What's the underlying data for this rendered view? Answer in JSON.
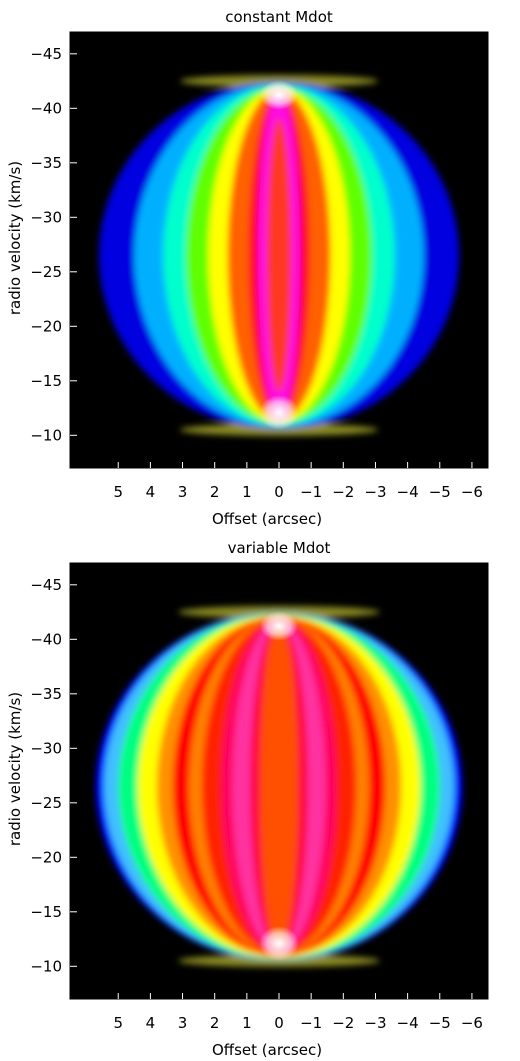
{
  "chart_data": [
    {
      "type": "heatmap",
      "title": "constant Mdot",
      "xlabel": "Offset (arcsec)",
      "ylabel": "radio velocity (km/s)",
      "xlim": [
        6.5,
        -6.5
      ],
      "ylim": [
        -7,
        -47
      ],
      "x_ticks": [
        5,
        4,
        3,
        2,
        1,
        0,
        -1,
        -2,
        -3,
        -4,
        -5,
        -6
      ],
      "x_tick_labels": [
        "5",
        "4",
        "3",
        "2",
        "1",
        "0",
        "−1",
        "−2",
        "−3",
        "−4",
        "−5",
        "−6"
      ],
      "y_ticks": [
        -45,
        -40,
        -35,
        -30,
        -25,
        -20,
        -15,
        -10
      ],
      "y_tick_labels": [
        "−45",
        "−40",
        "−35",
        "−30",
        "−25",
        "−20",
        "−15",
        "−10"
      ],
      "colormap": [
        "#000000",
        "#0000ff",
        "#00ffff",
        "#00ff00",
        "#ffff00",
        "#ff0000",
        "#ff00ff",
        "#ffffff"
      ],
      "background": "#000000",
      "shell_center": {
        "x": 0,
        "v": -26.5
      },
      "velocity_extent": [
        -42.5,
        -10.5
      ],
      "max_offset": 5.6,
      "bands": [
        {
          "offset": 5.6,
          "color": "#0000e0"
        },
        {
          "offset": 4.5,
          "color": "#00b0ff"
        },
        {
          "offset": 3.6,
          "color": "#00ffcc"
        },
        {
          "offset": 2.9,
          "color": "#60ff00"
        },
        {
          "offset": 2.2,
          "color": "#ffff00"
        },
        {
          "offset": 1.6,
          "color": "#ff6000"
        },
        {
          "offset": 0.95,
          "color": "#ff0020"
        },
        {
          "offset": 0.65,
          "color": "#ff10e0"
        }
      ],
      "inner_core_color": "#ff4000",
      "cap_color": "#ffffff",
      "rim_color": "#ffff40"
    },
    {
      "type": "heatmap",
      "title": "variable Mdot",
      "xlabel": "Offset (arcsec)",
      "ylabel": "radio velocity (km/s)",
      "xlim": [
        6.5,
        -6.5
      ],
      "ylim": [
        -7,
        -47
      ],
      "x_ticks": [
        5,
        4,
        3,
        2,
        1,
        0,
        -1,
        -2,
        -3,
        -4,
        -5,
        -6
      ],
      "x_tick_labels": [
        "5",
        "4",
        "3",
        "2",
        "1",
        "0",
        "−1",
        "−2",
        "−3",
        "−4",
        "−5",
        "−6"
      ],
      "y_ticks": [
        -45,
        -40,
        -35,
        -30,
        -25,
        -20,
        -15,
        -10
      ],
      "y_tick_labels": [
        "−45",
        "−40",
        "−35",
        "−30",
        "−25",
        "−20",
        "−15",
        "−10"
      ],
      "colormap": [
        "#000000",
        "#0000ff",
        "#00ffff",
        "#00ff00",
        "#ffff00",
        "#ff0000",
        "#ff00ff",
        "#ffffff"
      ],
      "background": "#000000",
      "shell_center": {
        "x": 0,
        "v": -26.5
      },
      "velocity_extent": [
        -42.5,
        -10.5
      ],
      "max_offset": 5.7,
      "bands": [
        {
          "offset": 5.7,
          "color": "#0000ff"
        },
        {
          "offset": 5.45,
          "color": "#40c0ff"
        },
        {
          "offset": 5.0,
          "color": "#00ff80"
        },
        {
          "offset": 4.4,
          "color": "#ffff00"
        },
        {
          "offset": 3.8,
          "color": "#ff9000"
        },
        {
          "offset": 3.3,
          "color": "#ff0000"
        },
        {
          "offset": 2.8,
          "color": "#ff8000"
        },
        {
          "offset": 2.4,
          "color": "#ff2000"
        },
        {
          "offset": 1.8,
          "color": "#ff0060"
        },
        {
          "offset": 1.45,
          "color": "#ff30a0"
        },
        {
          "offset": 0.9,
          "color": "#ff0040"
        },
        {
          "offset": 0.6,
          "color": "#ff5000"
        }
      ],
      "inner_core_color": "#ff5000",
      "cap_color": "#ffffff",
      "rim_color": "#ffff40"
    }
  ]
}
